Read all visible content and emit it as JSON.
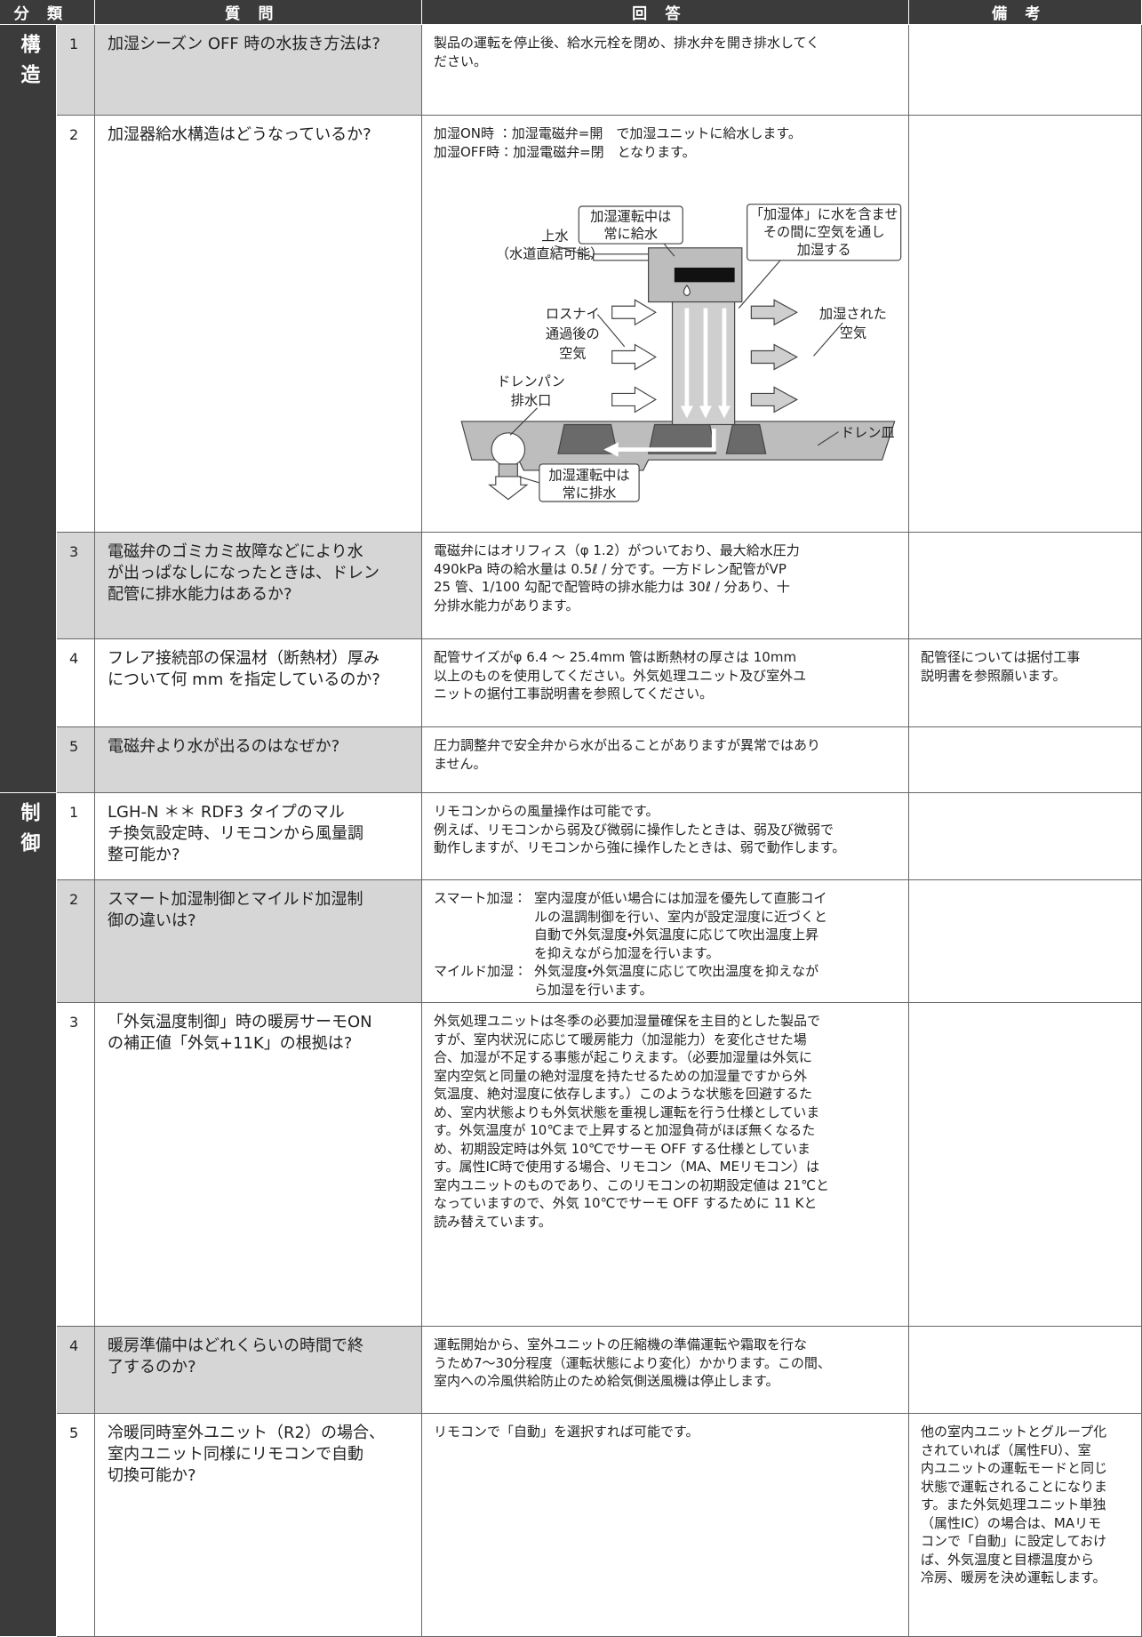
{
  "header": {
    "category": "分類",
    "question": "質問",
    "answer": "回答",
    "remarks": "備考"
  },
  "sections": [
    {
      "category": "構造",
      "rows": [
        {
          "no": "1",
          "question": [
            "加湿シーズン OFF 時の水抜き方法は?"
          ],
          "answer": [
            "製品の運転を停止後、給水元栓を閉め、排水弁を開き排水してく",
            "ださい。"
          ]
        },
        {
          "no": "2",
          "question": [
            "加湿器給水構造はどうなっているか?"
          ],
          "answer": [
            "加湿ON時 ：加湿電磁弁=開　で加湿ユニットに給水します。",
            "加湿OFF時：加湿電磁弁=閉　となります。"
          ]
        },
        {
          "no": "3",
          "question": [
            "電磁弁のゴミカミ故障などにより水",
            "が出っぱなしになったときは、ドレン",
            "配管に排水能力はあるか?"
          ],
          "answer": [
            "電磁弁にはオリフィス（φ 1.2）がついており、最大給水圧力",
            "490kPa 時の給水量は 0.5ℓ / 分です。一方ドレン配管がVP",
            "25 管、1/100 勾配で配管時の排水能力は 30ℓ / 分あり、十",
            "分排水能力があります。"
          ]
        },
        {
          "no": "4",
          "question": [
            "フレア接続部の保温材（断熱材）厚み",
            "について何 mm を指定しているのか?"
          ],
          "answer": [
            "配管サイズがφ 6.4 ～ 25.4mm 管は断熱材の厚さは 10mm",
            "以上のものを使用してください。外気処理ユニット及び室外ユ",
            "ニットの据付工事説明書を参照してください。"
          ],
          "remarks": [
            "配管径については据付工事",
            "説明書を参照願います。"
          ]
        },
        {
          "no": "5",
          "question": [
            "電磁弁より水が出るのはなぜか?"
          ],
          "answer": [
            "圧力調整弁で安全弁から水が出ることがありますが異常ではあり",
            "ません。"
          ]
        }
      ]
    },
    {
      "category": "制御",
      "rows": [
        {
          "no": "1",
          "question": [
            "LGH-N ＊＊ RDF3 タイプのマル",
            "チ換気設定時、リモコンから風量調",
            "整可能か?"
          ],
          "answer": [
            "リモコンからの風量操作は可能です。",
            "例えば、リモコンから弱及び微弱に操作したときは、弱及び微弱で",
            "動作しますが、リモコンから強に操作したときは、弱で動作します。"
          ]
        },
        {
          "no": "2",
          "question": [
            "スマート加湿制御とマイルド加湿制",
            "御の違いは?"
          ],
          "terms": [
            {
              "term": "スマート加湿：",
              "lines": [
                "室内湿度が低い場合には加湿を優先して直膨コイ",
                "ルの温調制御を行い、室内が設定湿度に近づくと",
                "自動で外気湿度・外気温度に応じて吹出温度上昇",
                "を抑えながら加湿を行います。"
              ]
            },
            {
              "term": "マイルド加湿：",
              "lines": [
                "外気湿度・外気温度に応じて吹出温度を抑えなが",
                "ら加湿を行います。"
              ]
            }
          ]
        },
        {
          "no": "3",
          "question": [
            "「外気温度制御」時の暖房サーモON",
            "の補正値「外気+11K」の根拠は?"
          ],
          "answer": [
            "外気処理ユニットは冬季の必要加湿量確保を主目的とした製品で",
            "すが、室内状況に応じて暖房能力（加湿能力）を変化させた場",
            "合、加湿が不足する事態が起こりえます。（必要加湿量は外気に",
            "室内空気と同量の絶対湿度を持たせるための加湿量ですから外",
            "気温度、絶対湿度に依存します。）このような状態を回避するた",
            "め、室内状態よりも外気状態を重視し運転を行う仕様としていま",
            "す。外気温度が 10℃まで上昇すると加湿負荷がほぼ無くなるた",
            "め、初期設定時は外気 10℃でサーモ OFF する仕様としていま",
            "す。属性IC時で使用する場合、リモコン（MA、MEリモコン）は",
            "室内ユニットのものであり、このリモコンの初期設定値は 21℃と",
            "なっていますので、外気 10℃でサーモ OFF するために 11 Kと",
            "読み替えています。"
          ]
        },
        {
          "no": "4",
          "question": [
            "暖房準備中はどれくらいの時間で終",
            "了するのか?"
          ],
          "answer": [
            "運転開始から、室外ユニットの圧縮機の準備運転や霜取を行な",
            "うため7～30分程度（運転状態により変化）かかります。この間、",
            "室内への冷風供給防止のため給気側送風機は停止します。"
          ]
        },
        {
          "no": "5",
          "question": [
            "冷暖同時室外ユニット（R2）の場合、",
            "室内ユニット同様にリモコンで自動",
            "切換可能か?"
          ],
          "answer": [
            "リモコンで「自動」を選択すれば可能です。"
          ],
          "remarks": [
            "他の室内ユニットとグループ化",
            "されていれば（属性FU）、室",
            "内ユニットの運転モードと同じ",
            "状態で運転されることになりま",
            "す。また外気処理ユニット単独",
            "（属性IC）の場合は、MAリモ",
            "コンで「自動」に設定しておけ",
            "ば、外気温度と目標温度から",
            "冷房、暖房を決め運転します。"
          ]
        }
      ]
    }
  ],
  "diagram": {
    "supply_note": [
      "加湿運転中は",
      "常に給水"
    ],
    "element_note": [
      "「加湿体」に水を含ませ",
      "その間に空気を通し",
      "加湿する"
    ],
    "water": "上水",
    "water_note": "（水道直結可能）",
    "inlet_air": [
      "ロスナイ",
      "通過後の",
      "空気"
    ],
    "drain_port": [
      "ドレンパン",
      "排水口"
    ],
    "outlet_air": [
      "加湿された",
      "空気"
    ],
    "drain_tray": "ドレン皿",
    "drain_note": [
      "加湿運転中は",
      "常に排水"
    ]
  }
}
